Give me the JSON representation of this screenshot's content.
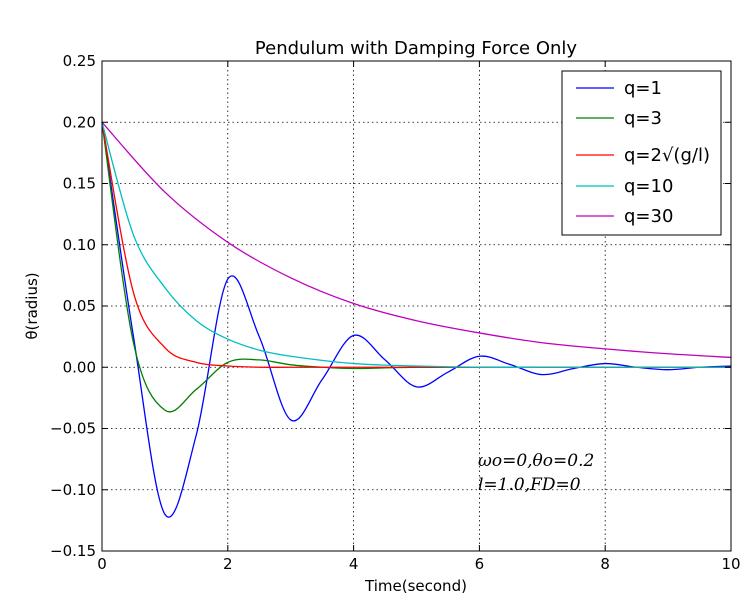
{
  "chart_data": {
    "type": "line",
    "title": "Pendulum with Damping Force Only",
    "xlabel": "Time(second)",
    "ylabel": "θ(radius)",
    "xlim": [
      0,
      10
    ],
    "ylim": [
      -0.15,
      0.25
    ],
    "xticks": [
      0,
      2,
      4,
      6,
      8,
      10
    ],
    "yticks": [
      -0.15,
      -0.1,
      -0.05,
      0.0,
      0.05,
      0.1,
      0.15,
      0.2,
      0.25
    ],
    "xtick_labels": [
      "0",
      "2",
      "4",
      "6",
      "8",
      "10"
    ],
    "ytick_labels": [
      "−0.15",
      "−0.10",
      "−0.05",
      "0.00",
      "0.05",
      "0.10",
      "0.15",
      "0.20",
      "0.25"
    ],
    "grid": true,
    "legend_position": "top-right",
    "annotation": {
      "line1": "ωo=0,θo=0.2",
      "line2": "l=1.0,FD=0"
    },
    "series": [
      {
        "name": "q=1",
        "color": "#0000ff",
        "x": [
          0,
          0.5,
          1.0,
          1.5,
          2.0,
          2.5,
          3.0,
          3.5,
          4.0,
          4.5,
          5.0,
          5.5,
          6.0,
          6.5,
          7.0,
          7.5,
          8.0,
          8.5,
          9.0,
          9.5,
          10.0
        ],
        "y": [
          0.2,
          0.025,
          -0.12,
          -0.055,
          0.072,
          0.025,
          -0.043,
          -0.01,
          0.026,
          0.006,
          -0.016,
          -0.004,
          0.009,
          0.002,
          -0.006,
          -0.001,
          0.003,
          0.0,
          -0.002,
          0.0,
          0.001
        ]
      },
      {
        "name": "q=3",
        "color": "#008000",
        "x": [
          0,
          0.5,
          1.0,
          1.5,
          2.0,
          2.5,
          3.0,
          3.5,
          4.0,
          5.0,
          6.0,
          8.0,
          10.0
        ],
        "y": [
          0.2,
          0.02,
          -0.035,
          -0.018,
          0.004,
          0.006,
          0.002,
          0.0,
          -0.001,
          0.0,
          0.0,
          0.0,
          0.0
        ]
      },
      {
        "name": "q=2√(g/l)",
        "color": "#ff0000",
        "x": [
          0,
          0.5,
          1.0,
          1.5,
          2.0,
          2.5,
          3.0,
          4.0,
          6.0,
          8.0,
          10.0
        ],
        "y": [
          0.2,
          0.061,
          0.016,
          0.004,
          0.001,
          0.0,
          0.0,
          0.0,
          0.0,
          0.0,
          0.0
        ]
      },
      {
        "name": "q=10",
        "color": "#00bfbf",
        "x": [
          0,
          0.5,
          1.0,
          1.5,
          2.0,
          2.5,
          3.0,
          4.0,
          5.0,
          6.0,
          7.0,
          8.0,
          10.0
        ],
        "y": [
          0.2,
          0.108,
          0.065,
          0.038,
          0.023,
          0.014,
          0.009,
          0.003,
          0.001,
          0.0,
          0.0,
          0.0,
          0.0
        ]
      },
      {
        "name": "q=30",
        "color": "#bf00bf",
        "x": [
          0,
          1.0,
          2.0,
          3.0,
          4.0,
          5.0,
          6.0,
          7.0,
          8.0,
          9.0,
          10.0
        ],
        "y": [
          0.2,
          0.143,
          0.102,
          0.073,
          0.052,
          0.038,
          0.028,
          0.02,
          0.015,
          0.011,
          0.008
        ]
      }
    ]
  }
}
